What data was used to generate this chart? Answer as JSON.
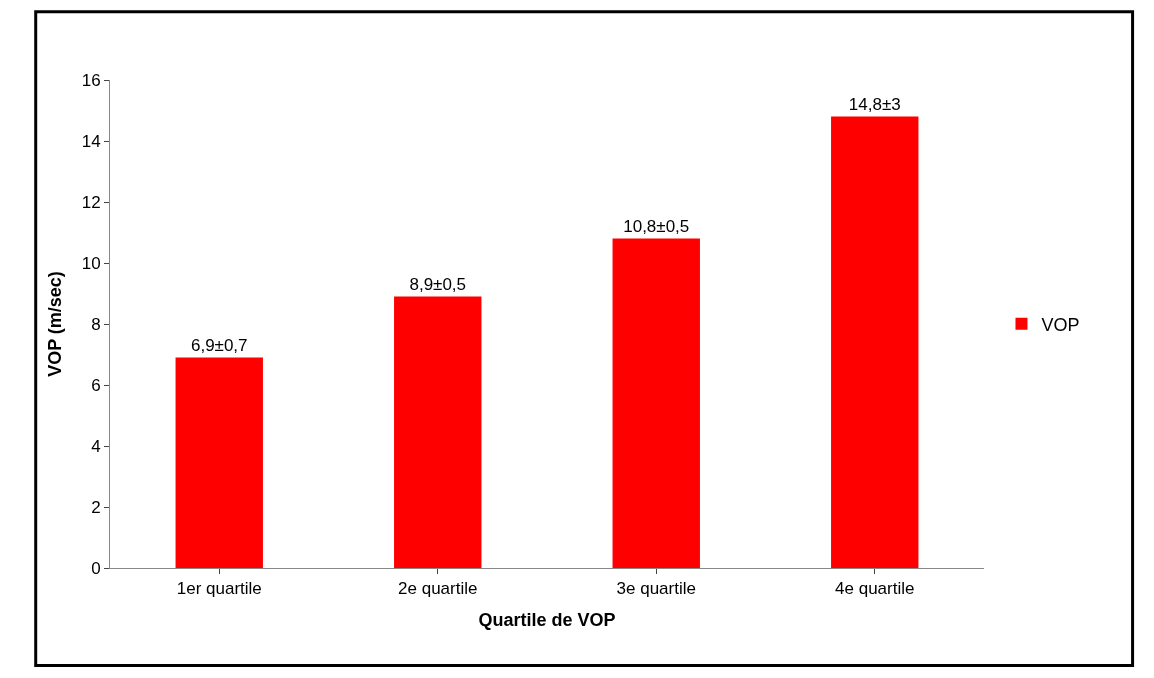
{
  "chart_data": {
    "type": "bar",
    "xlabel": "Quartile de VOP",
    "ylabel": "VOP (m/sec)",
    "categories": [
      "1er quartile",
      "2e quartile",
      "3e quartile",
      "4e quartile"
    ],
    "series": [
      {
        "name": "VOP",
        "color": "#ff0000",
        "values": [
          6.9,
          8.9,
          10.8,
          14.8
        ],
        "value_labels": [
          "6,9±0,7",
          "8,9±0,5",
          "10,8±0,5",
          "14,8±3"
        ]
      }
    ],
    "ylim": [
      0,
      16
    ],
    "yticks": [
      0,
      2,
      4,
      6,
      8,
      10,
      12,
      14,
      16
    ],
    "legend": "right"
  }
}
